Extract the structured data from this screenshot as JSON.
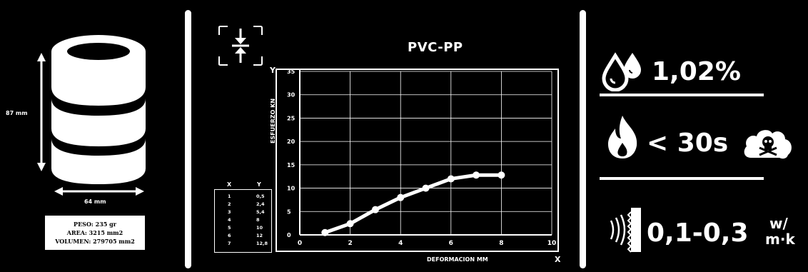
{
  "cylinder": {
    "height_label": "87 mm",
    "width_label": "64 mm",
    "weight": "PESO: 235 gr",
    "area": "AREA: 3215 mm2",
    "volume": "VOLUMEN: 279705 mm2"
  },
  "icons": {
    "compression": "compression-arrows-icon",
    "moisture": "water-drops-icon",
    "fire": "flame-icon",
    "toxic": "skull-cloud-icon",
    "heat": "heat-transfer-icon"
  },
  "chart_data": {
    "type": "line",
    "title": "PVC-PP",
    "xlabel": "DEFORMACION MM",
    "ylabel": "ESFUERZO KN",
    "x_axis_letter": "X",
    "y_axis_letter": "Y",
    "xlim": [
      0,
      10
    ],
    "ylim": [
      0,
      35
    ],
    "x_ticks": [
      0,
      2,
      4,
      6,
      8,
      10
    ],
    "y_ticks": [
      0,
      5,
      10,
      15,
      20,
      25,
      30,
      35
    ],
    "grid": true,
    "series": [
      {
        "x": [
          1,
          2,
          3,
          4,
          5,
          6,
          7,
          8
        ],
        "values": [
          0.5,
          2.4,
          5.4,
          8,
          10,
          12,
          12.8,
          12.8
        ],
        "color": "#ffffff"
      }
    ],
    "table": {
      "headers": [
        "X",
        "Y"
      ],
      "rows": [
        [
          "1",
          "0,5"
        ],
        [
          "2",
          "2,4"
        ],
        [
          "3",
          "5,4"
        ],
        [
          "4",
          "8"
        ],
        [
          "5",
          "10"
        ],
        [
          "6",
          "12"
        ],
        [
          "7",
          "12,8"
        ]
      ]
    }
  },
  "properties": {
    "moisture_value": "1,02%",
    "fire_value": "< 30s",
    "conductivity_value": "0,1-0,3",
    "conductivity_unit_top": "w/",
    "conductivity_unit_bottom": "m·k"
  },
  "colors": {
    "background": "#000000",
    "foreground": "#ffffff"
  }
}
